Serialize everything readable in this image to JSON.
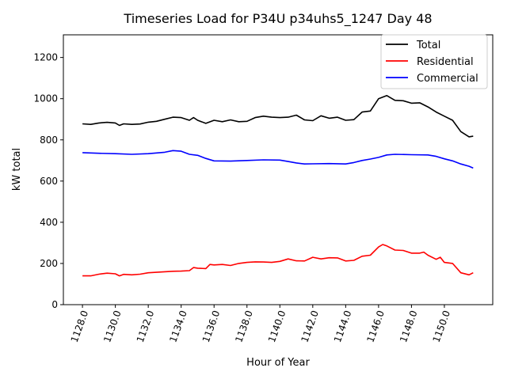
{
  "chart_data": {
    "type": "line",
    "title": "Timeseries Load for P34U p34uhs5_1247  Day 48",
    "xlabel": "Hour of Year",
    "ylabel": "kW total",
    "xlim": [
      1126.84,
      1152.94
    ],
    "ylim": [
      0,
      1310
    ],
    "xticks": [
      1128,
      1130,
      1132,
      1134,
      1136,
      1138,
      1140,
      1142,
      1144,
      1146,
      1148,
      1150
    ],
    "xtick_labels": [
      "1128.0",
      "1130.0",
      "1132.0",
      "1134.0",
      "1136.0",
      "1138.0",
      "1140.0",
      "1142.0",
      "1144.0",
      "1146.0",
      "1148.0",
      "1150.0"
    ],
    "yticks": [
      0,
      200,
      400,
      600,
      800,
      1000,
      1200
    ],
    "ytick_labels": [
      "0",
      "200",
      "400",
      "600",
      "800",
      "1000",
      "1200"
    ],
    "legend_position": "top-right",
    "series": [
      {
        "name": "Total",
        "color": "#000000",
        "x": [
          1128,
          1128.5,
          1129,
          1129.5,
          1130,
          1130.25,
          1130.5,
          1131,
          1131.5,
          1132,
          1132.5,
          1133,
          1133.5,
          1134,
          1134.5,
          1134.75,
          1135,
          1135.5,
          1136,
          1136.5,
          1137,
          1137.5,
          1138,
          1138.5,
          1139,
          1139.5,
          1140,
          1140.5,
          1141,
          1141.5,
          1142,
          1142.5,
          1143,
          1143.5,
          1144,
          1144.5,
          1145,
          1145.5,
          1146,
          1146.5,
          1147,
          1147.5,
          1148,
          1148.5,
          1149,
          1149.5,
          1150,
          1150.5,
          1151,
          1151.5,
          1151.75
        ],
        "y": [
          878,
          875,
          882,
          885,
          882,
          870,
          878,
          875,
          877,
          886,
          890,
          900,
          910,
          908,
          895,
          908,
          895,
          880,
          895,
          888,
          897,
          888,
          890,
          908,
          915,
          910,
          908,
          910,
          920,
          897,
          893,
          917,
          905,
          910,
          895,
          898,
          935,
          940,
          1000,
          1015,
          992,
          990,
          978,
          980,
          960,
          935,
          915,
          895,
          840,
          815,
          818
        ]
      },
      {
        "name": "Residential",
        "color": "#ff0000",
        "x": [
          1128,
          1128.5,
          1129,
          1129.5,
          1130,
          1130.25,
          1130.5,
          1131,
          1131.5,
          1132,
          1132.5,
          1133,
          1133.5,
          1134,
          1134.5,
          1134.75,
          1135,
          1135.5,
          1135.75,
          1136,
          1136.5,
          1137,
          1137.5,
          1138,
          1138.5,
          1139,
          1139.5,
          1140,
          1140.5,
          1141,
          1141.5,
          1142,
          1142.5,
          1143,
          1143.5,
          1144,
          1144.5,
          1145,
          1145.5,
          1146,
          1146.25,
          1146.5,
          1147,
          1147.5,
          1148,
          1148.5,
          1148.75,
          1149,
          1149.5,
          1149.75,
          1150,
          1150.5,
          1151,
          1151.5,
          1151.75
        ],
        "y": [
          140,
          140,
          148,
          153,
          150,
          140,
          147,
          145,
          148,
          155,
          157,
          160,
          162,
          163,
          165,
          180,
          177,
          175,
          195,
          193,
          195,
          190,
          200,
          205,
          208,
          207,
          205,
          210,
          222,
          213,
          212,
          230,
          222,
          228,
          227,
          212,
          215,
          235,
          240,
          280,
          292,
          285,
          265,
          263,
          250,
          250,
          255,
          240,
          220,
          230,
          205,
          200,
          155,
          145,
          155
        ]
      },
      {
        "name": "Commercial",
        "color": "#0000ff",
        "x": [
          1128,
          1129,
          1130,
          1131,
          1132,
          1133,
          1133.5,
          1134,
          1134.5,
          1135,
          1135.5,
          1136,
          1137,
          1138,
          1139,
          1140,
          1140.5,
          1141,
          1141.5,
          1142,
          1143,
          1144,
          1144.5,
          1145,
          1145.5,
          1146,
          1146.5,
          1147,
          1148,
          1149,
          1149.5,
          1150,
          1150.5,
          1151,
          1151.5,
          1151.75
        ],
        "y": [
          738,
          735,
          733,
          730,
          733,
          740,
          748,
          745,
          730,
          725,
          710,
          698,
          697,
          700,
          703,
          702,
          695,
          688,
          683,
          684,
          685,
          683,
          690,
          700,
          707,
          715,
          727,
          730,
          728,
          727,
          720,
          708,
          698,
          683,
          672,
          663
        ]
      }
    ]
  }
}
